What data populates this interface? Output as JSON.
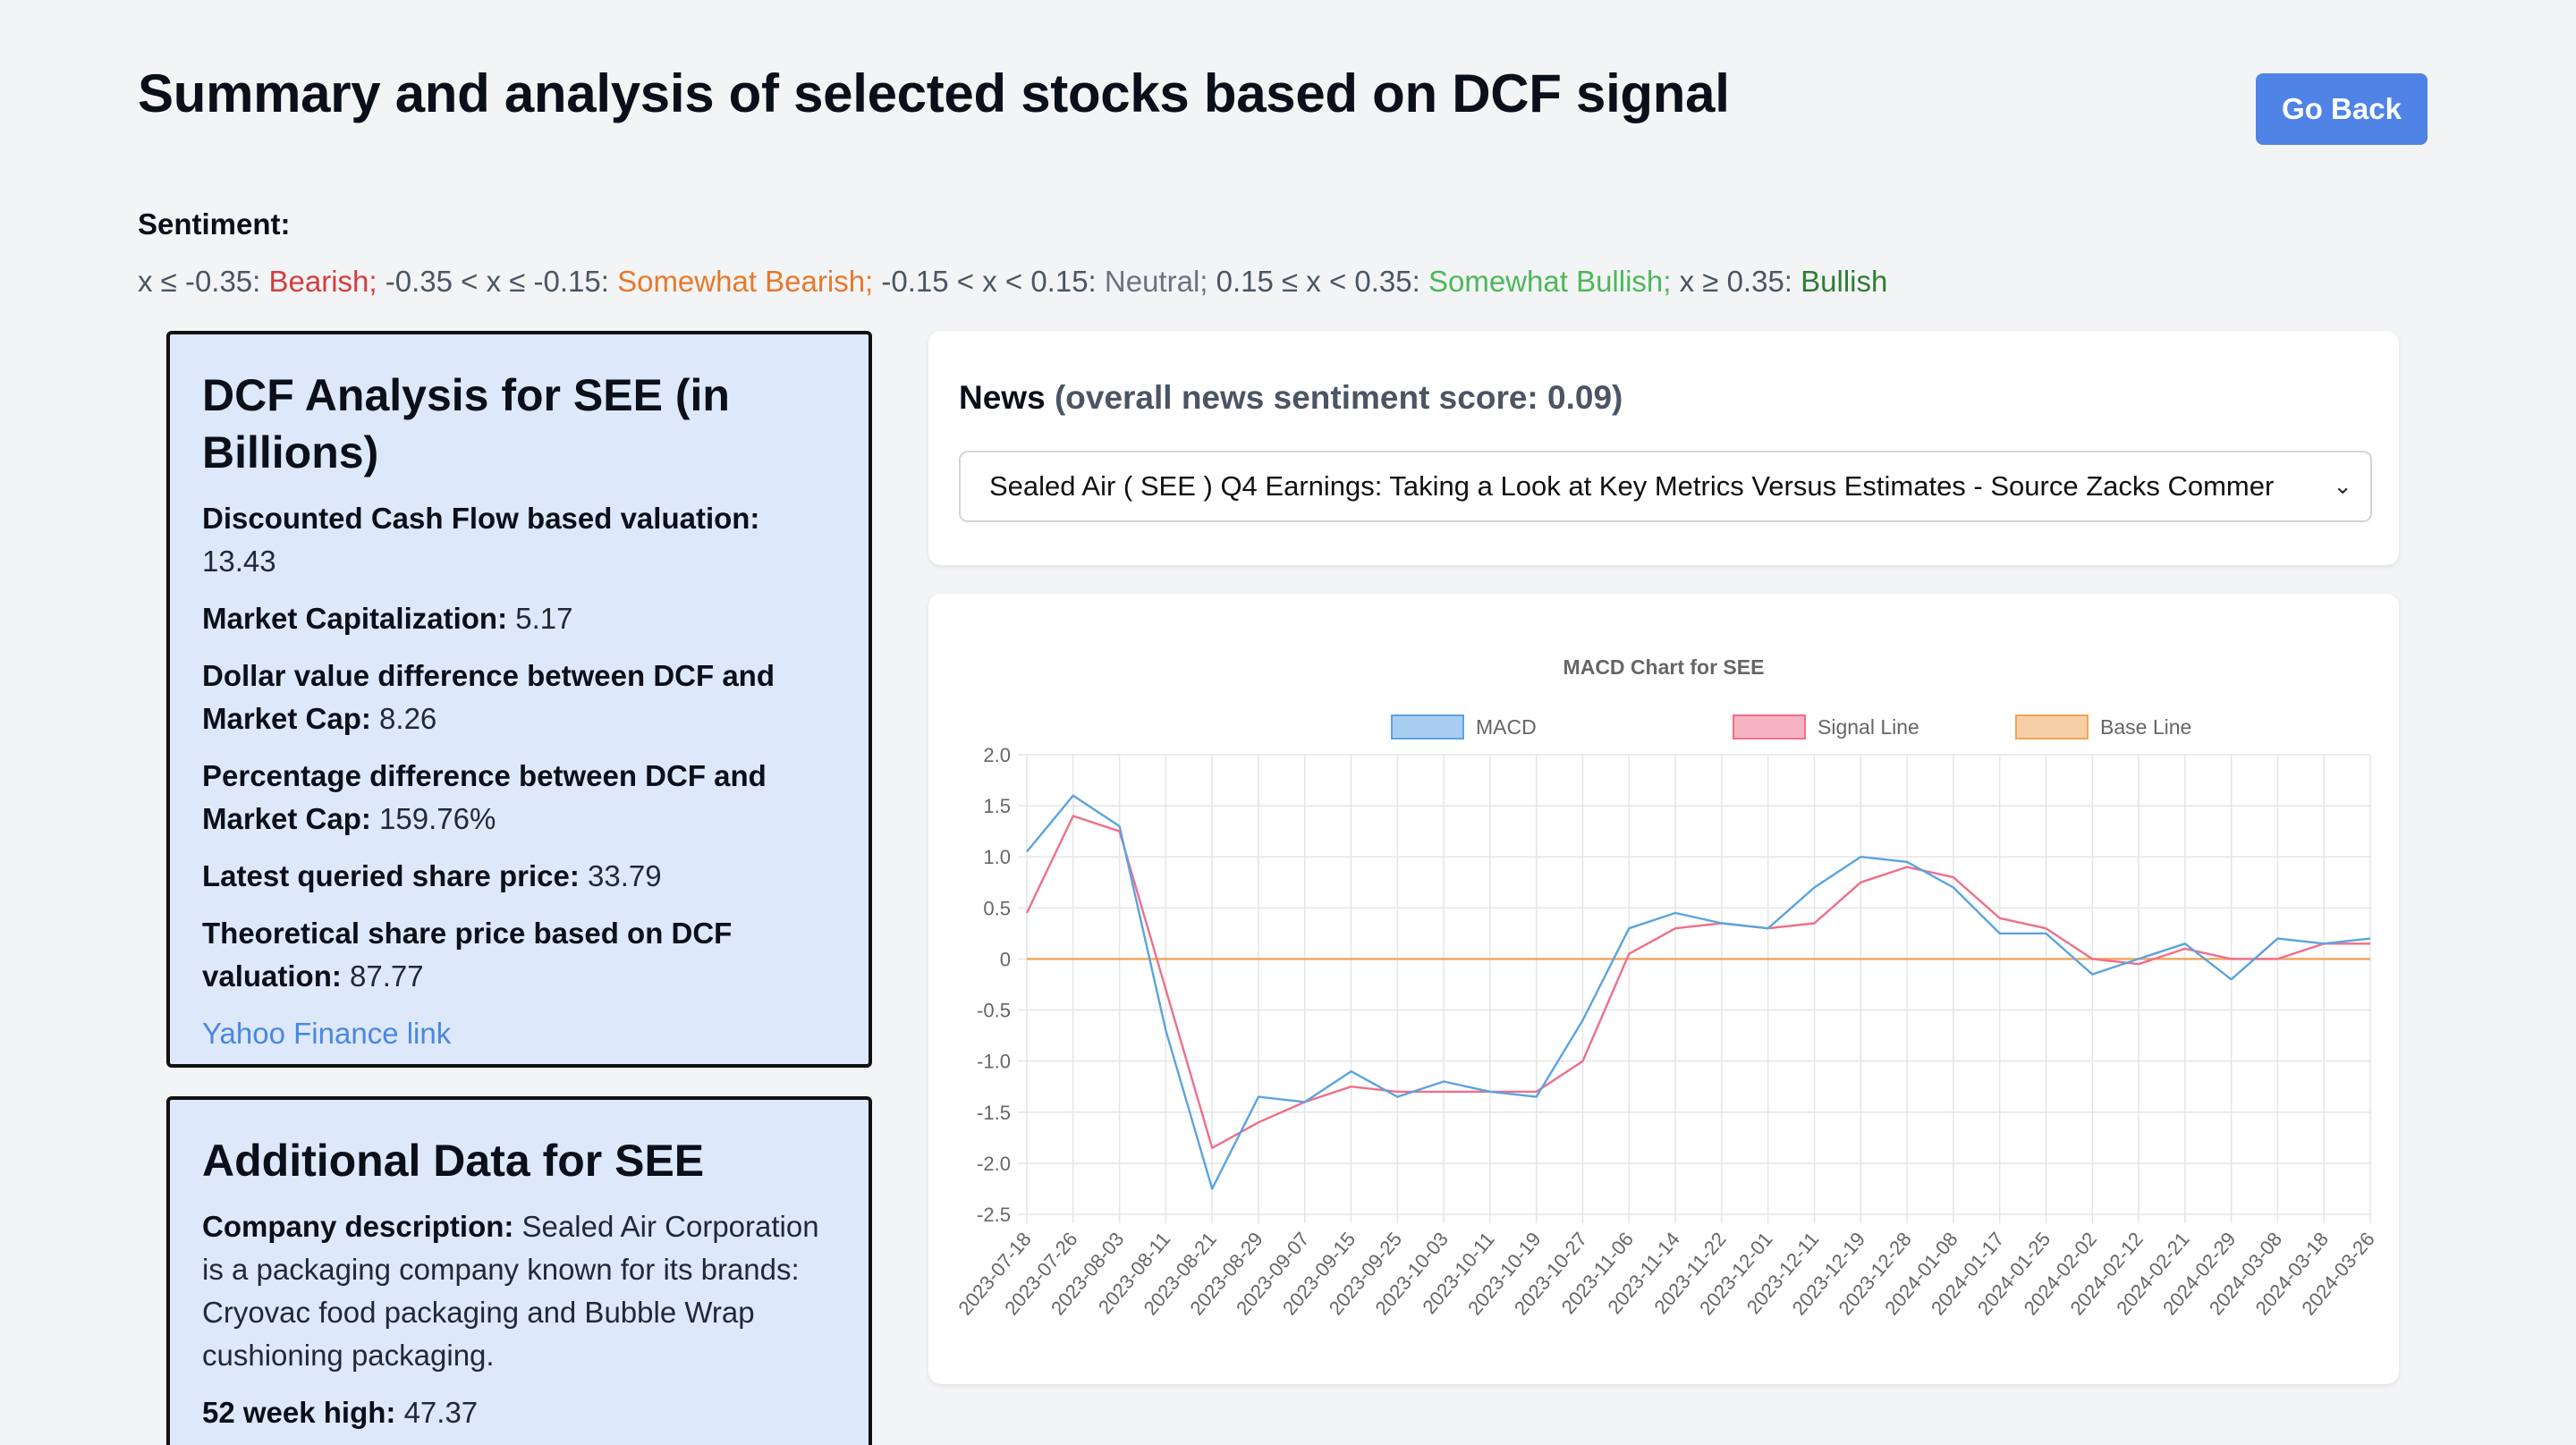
{
  "page": {
    "title": "Summary and analysis of selected stocks based on DCF signal",
    "go_back": "Go Back"
  },
  "sentiment": {
    "label": "Sentiment:",
    "p1": "x ≤ -0.35: ",
    "bearish": "Bearish;",
    "p2": " -0.35 < x ≤ -0.15: ",
    "somewhat_bearish": "Somewhat Bearish;",
    "p3": " -0.15 < x < 0.15: ",
    "neutral": "Neutral;",
    "p4": " 0.15 ≤ x < 0.35: ",
    "somewhat_bullish": "Somewhat Bullish;",
    "p5": " x ≥ 0.35: ",
    "bullish": "Bullish"
  },
  "dcf": {
    "heading": "DCF Analysis for SEE (in Billions)",
    "dcf_label": "Discounted Cash Flow based valuation:",
    "dcf_value": " 13.43",
    "mcap_label": "Market Capitalization:",
    "mcap_value": " 5.17",
    "diff_label": "Dollar value difference between DCF and Market Cap:",
    "diff_value": " 8.26",
    "pct_label": "Percentage difference between DCF and Market Cap:",
    "pct_value": " 159.76%",
    "price_label": "Latest queried share price:",
    "price_value": " 33.79",
    "theo_label": "Theoretical share price based on DCF valuation:",
    "theo_value": " 87.77",
    "yahoo_link": "Yahoo Finance link"
  },
  "additional": {
    "heading": "Additional Data for SEE",
    "desc_label": "Company description:",
    "desc_value": " Sealed Air Corporation is a packaging company known for its brands: Cryovac food packaging and Bubble Wrap cushioning packaging.",
    "high_label": "52 week high:",
    "high_value": " 47.37"
  },
  "news": {
    "label": "News",
    "score_text": "(overall news sentiment score: 0.09)",
    "selected": "Sealed Air ( SEE ) Q4 Earnings: Taking a Look at Key Metrics Versus Estimates - Source Zacks Commer"
  },
  "colors": {
    "macd": "#5ba3e0",
    "signal": "#ef6f8a",
    "base": "#f0a45a"
  },
  "chart_data": {
    "type": "line",
    "title": "MACD Chart for SEE",
    "ylim": [
      -2.5,
      2.0
    ],
    "yticks": [
      "2.0",
      "1.5",
      "1.0",
      "0.5",
      "0",
      "-0.5",
      "-1.0",
      "-1.5",
      "-2.0",
      "-2.5"
    ],
    "ytick_values": [
      2.0,
      1.5,
      1.0,
      0.5,
      0,
      -0.5,
      -1.0,
      -1.5,
      -2.0,
      -2.5
    ],
    "x": [
      "2023-07-18",
      "2023-07-26",
      "2023-08-03",
      "2023-08-11",
      "2023-08-21",
      "2023-08-29",
      "2023-09-07",
      "2023-09-15",
      "2023-09-25",
      "2023-10-03",
      "2023-10-11",
      "2023-10-19",
      "2023-10-27",
      "2023-11-06",
      "2023-11-14",
      "2023-11-22",
      "2023-12-01",
      "2023-12-11",
      "2023-12-19",
      "2023-12-28",
      "2024-01-08",
      "2024-01-17",
      "2024-01-25",
      "2024-02-02",
      "2024-02-12",
      "2024-02-21",
      "2024-02-29",
      "2024-03-08",
      "2024-03-18",
      "2024-03-26"
    ],
    "grid": true,
    "legend": "top",
    "series": [
      {
        "name": "MACD",
        "values": [
          1.05,
          1.6,
          1.3,
          -0.7,
          -2.25,
          -1.35,
          -1.4,
          -1.1,
          -1.35,
          -1.2,
          -1.3,
          -1.35,
          -0.6,
          0.3,
          0.45,
          0.35,
          0.3,
          0.7,
          1.0,
          0.95,
          0.7,
          0.25,
          0.25,
          -0.15,
          0.0,
          0.15,
          -0.2,
          0.2,
          0.15,
          0.2
        ]
      },
      {
        "name": "Signal Line",
        "values": [
          0.45,
          1.4,
          1.25,
          -0.3,
          -1.85,
          -1.6,
          -1.4,
          -1.25,
          -1.3,
          -1.3,
          -1.3,
          -1.3,
          -1.0,
          0.05,
          0.3,
          0.35,
          0.3,
          0.35,
          0.75,
          0.9,
          0.8,
          0.4,
          0.3,
          0.0,
          -0.05,
          0.1,
          0.0,
          0.0,
          0.15,
          0.15
        ]
      },
      {
        "name": "Base Line",
        "values": [
          0,
          0,
          0,
          0,
          0,
          0,
          0,
          0,
          0,
          0,
          0,
          0,
          0,
          0,
          0,
          0,
          0,
          0,
          0,
          0,
          0,
          0,
          0,
          0,
          0,
          0,
          0,
          0,
          0,
          0
        ]
      }
    ]
  }
}
